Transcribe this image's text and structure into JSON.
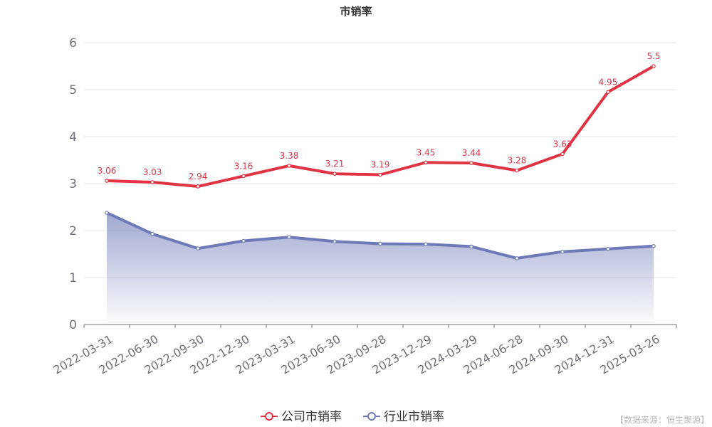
{
  "chart_data": {
    "type": "line",
    "title": "市销率",
    "categories": [
      "2022-03-31",
      "2022-06-30",
      "2022-09-30",
      "2022-12-30",
      "2023-03-31",
      "2023-06-30",
      "2023-09-28",
      "2023-12-29",
      "2024-03-29",
      "2024-06-28",
      "2024-09-30",
      "2024-12-31",
      "2025-03-26"
    ],
    "series": [
      {
        "name": "公司市销率",
        "color": "#e03444",
        "values": [
          3.06,
          3.03,
          2.94,
          3.16,
          3.38,
          3.21,
          3.19,
          3.45,
          3.44,
          3.28,
          3.63,
          4.95,
          5.5
        ],
        "data_labels": true
      },
      {
        "name": "行业市销率",
        "color": "#6e7ab8",
        "values": [
          2.38,
          1.93,
          1.62,
          1.78,
          1.86,
          1.77,
          1.72,
          1.71,
          1.66,
          1.41,
          1.55,
          1.61,
          1.67
        ],
        "data_labels": false,
        "area": true
      }
    ],
    "yticks": [
      0,
      1,
      2,
      3,
      4,
      5,
      6
    ],
    "ylim": [
      0,
      6
    ],
    "grid": true,
    "legend_position": "bottom-center"
  },
  "source_note": "【数据来源：恒生聚源】"
}
